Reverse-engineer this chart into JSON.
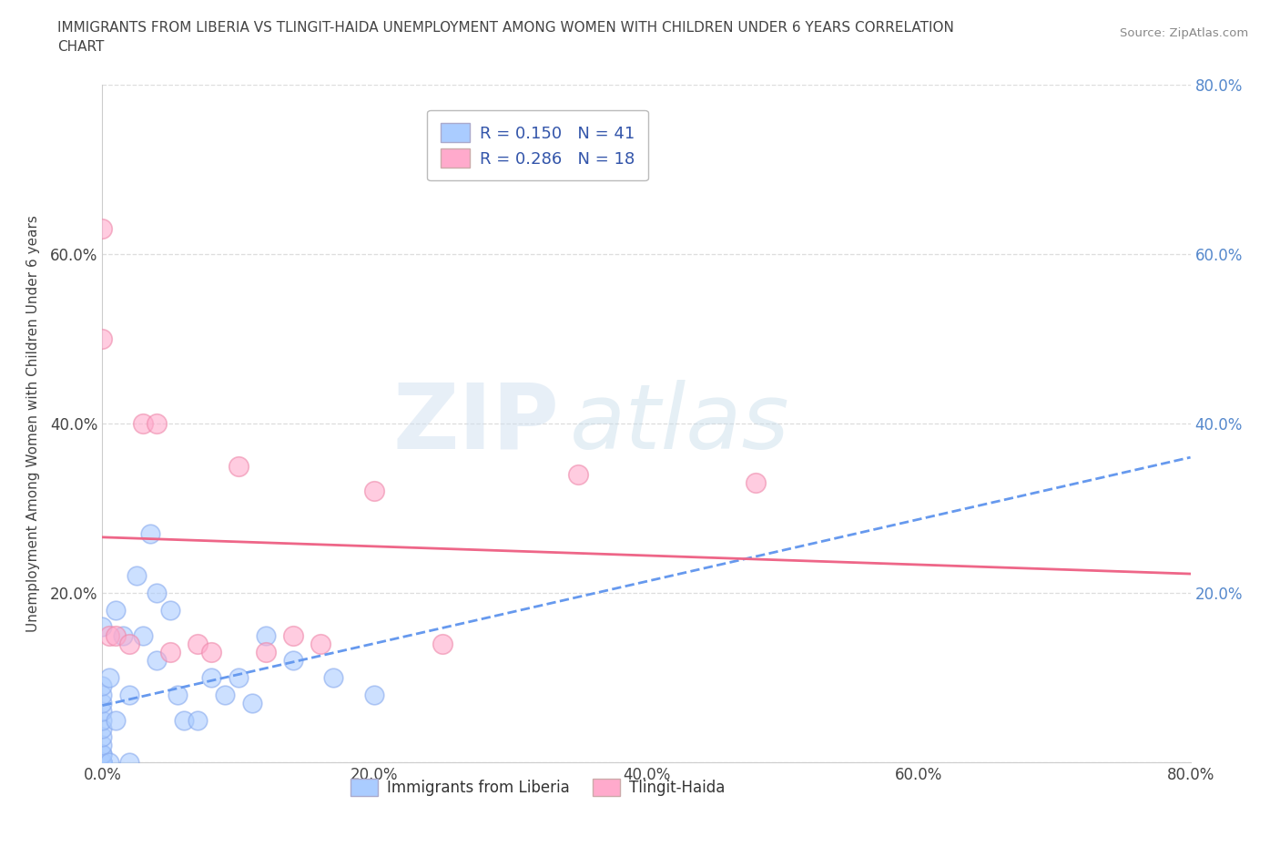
{
  "title_line1": "IMMIGRANTS FROM LIBERIA VS TLINGIT-HAIDA UNEMPLOYMENT AMONG WOMEN WITH CHILDREN UNDER 6 YEARS CORRELATION",
  "title_line2": "CHART",
  "source_text": "Source: ZipAtlas.com",
  "ylabel": "Unemployment Among Women with Children Under 6 years",
  "xlim": [
    0.0,
    0.8
  ],
  "ylim": [
    0.0,
    0.8
  ],
  "xtick_labels": [
    "0.0%",
    "20.0%",
    "40.0%",
    "60.0%",
    "80.0%"
  ],
  "xtick_vals": [
    0.0,
    0.2,
    0.4,
    0.6,
    0.8
  ],
  "ytick_labels_left": [
    "",
    "20.0%",
    "40.0%",
    "60.0%",
    ""
  ],
  "ytick_labels_right": [
    "",
    "20.0%",
    "40.0%",
    "60.0%",
    "80.0%"
  ],
  "ytick_vals": [
    0.0,
    0.2,
    0.4,
    0.6,
    0.8
  ],
  "liberia_color": "#aaccff",
  "tlingit_color": "#ffaacc",
  "liberia_edge": "#88aaee",
  "tlingit_edge": "#ee88aa",
  "liberia_R": 0.15,
  "liberia_N": 41,
  "tlingit_R": 0.286,
  "tlingit_N": 18,
  "liberia_x": [
    0.0,
    0.0,
    0.0,
    0.0,
    0.0,
    0.0,
    0.0,
    0.0,
    0.0,
    0.0,
    0.0,
    0.0,
    0.0,
    0.0,
    0.0,
    0.0,
    0.0,
    0.005,
    0.005,
    0.01,
    0.01,
    0.015,
    0.02,
    0.02,
    0.025,
    0.03,
    0.035,
    0.04,
    0.04,
    0.05,
    0.055,
    0.06,
    0.07,
    0.08,
    0.09,
    0.1,
    0.11,
    0.12,
    0.14,
    0.17,
    0.2
  ],
  "liberia_y": [
    0.0,
    0.0,
    0.0,
    0.0,
    0.0,
    0.0,
    0.01,
    0.01,
    0.02,
    0.03,
    0.04,
    0.05,
    0.06,
    0.07,
    0.08,
    0.09,
    0.16,
    0.0,
    0.1,
    0.05,
    0.18,
    0.15,
    0.0,
    0.08,
    0.22,
    0.15,
    0.27,
    0.12,
    0.2,
    0.18,
    0.08,
    0.05,
    0.05,
    0.1,
    0.08,
    0.1,
    0.07,
    0.15,
    0.12,
    0.1,
    0.08
  ],
  "tlingit_x": [
    0.0,
    0.0,
    0.005,
    0.01,
    0.02,
    0.03,
    0.04,
    0.05,
    0.07,
    0.08,
    0.1,
    0.12,
    0.14,
    0.16,
    0.2,
    0.25,
    0.35,
    0.48
  ],
  "tlingit_y": [
    0.63,
    0.5,
    0.15,
    0.15,
    0.14,
    0.4,
    0.4,
    0.13,
    0.14,
    0.13,
    0.35,
    0.13,
    0.15,
    0.14,
    0.32,
    0.14,
    0.34,
    0.33
  ],
  "background_color": "#ffffff",
  "grid_color": "#dddddd",
  "watermark_zip": "ZIP",
  "watermark_atlas": "atlas",
  "title_color": "#444444",
  "axis_label_color": "#444444",
  "right_tick_color": "#5588cc",
  "trend_liberia_color": "#6699ee",
  "trend_tlingit_color": "#ee6688",
  "legend_text_color": "#3355aa"
}
